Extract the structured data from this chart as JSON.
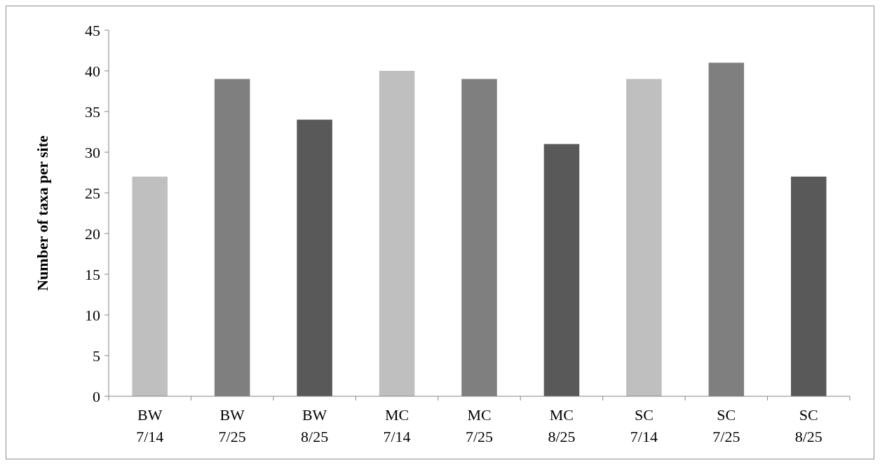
{
  "chart_data": {
    "type": "bar",
    "ylabel": "Number of taxa per site",
    "categories": [
      "BW\n7/14",
      "BW\n7/25",
      "BW\n8/25",
      "MC\n7/14",
      "MC\n7/25",
      "MC\n8/25",
      "SC\n7/14",
      "SC\n7/25",
      "SC\n8/25"
    ],
    "values": [
      27,
      39,
      34,
      40,
      39,
      31,
      39,
      41,
      27
    ],
    "colors": [
      "#bfbfbf",
      "#7f7f7f",
      "#595959",
      "#bfbfbf",
      "#7f7f7f",
      "#595959",
      "#bfbfbf",
      "#7f7f7f",
      "#595959"
    ],
    "ylim": [
      0,
      45
    ],
    "yticks": [
      0,
      5,
      10,
      15,
      20,
      25,
      30,
      35,
      40,
      45
    ],
    "grid": false
  }
}
